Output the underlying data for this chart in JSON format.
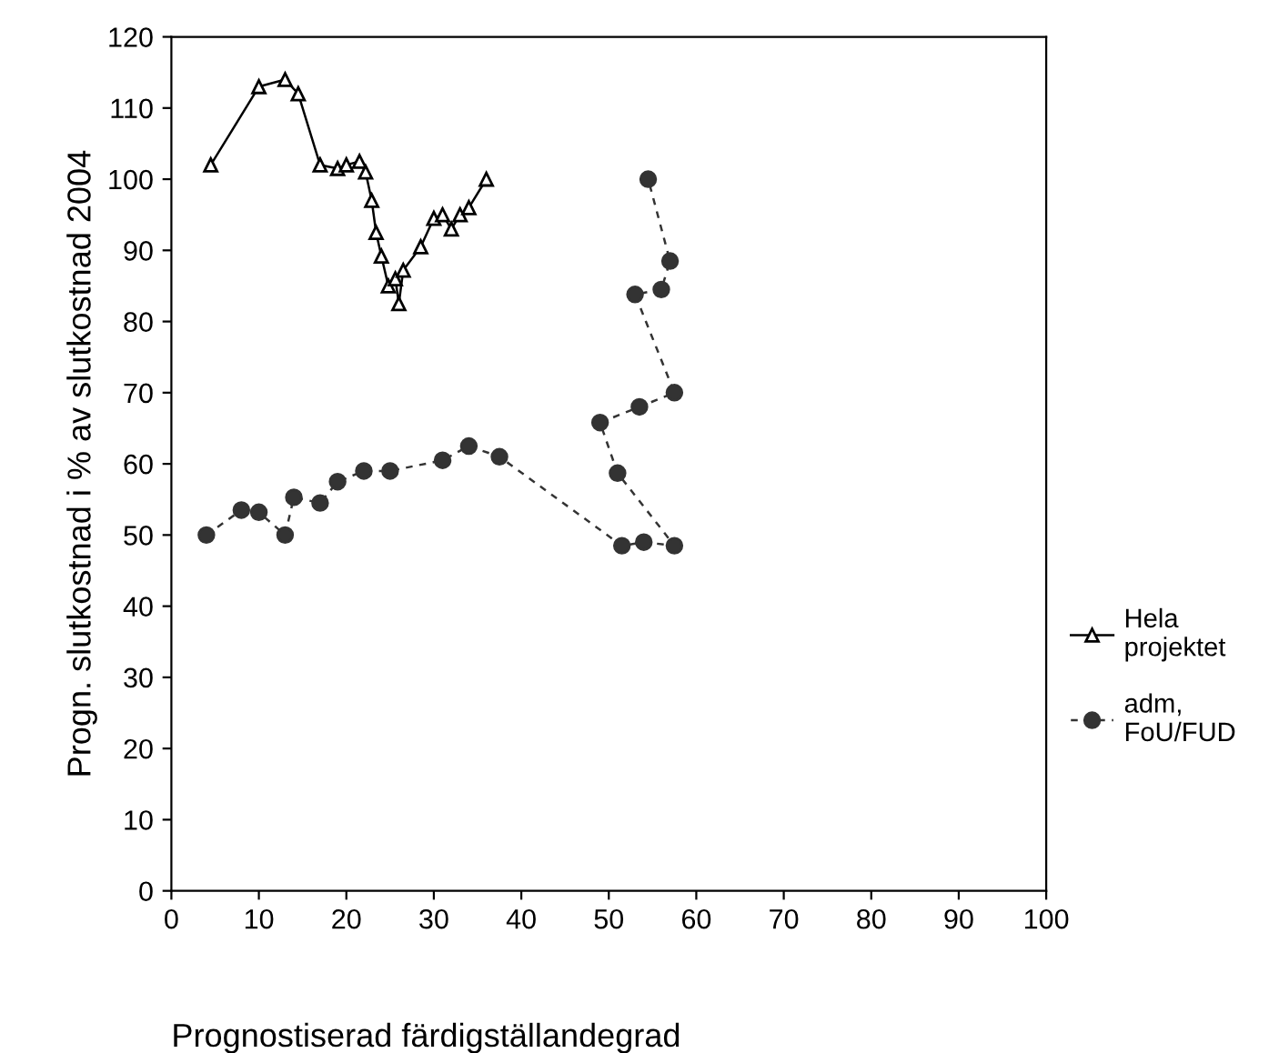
{
  "chart_data": {
    "type": "line",
    "xlabel": "Prognostiserad färdigställandegrad",
    "ylabel": "Progn. slutkostnad i % av slutkostnad 2004",
    "xlim": [
      0,
      100
    ],
    "xticks": [
      0,
      10,
      20,
      30,
      40,
      50,
      60,
      70,
      80,
      90,
      100
    ],
    "ylim": [
      0,
      120
    ],
    "yticks": [
      0,
      10,
      20,
      30,
      40,
      50,
      60,
      70,
      80,
      90,
      100,
      110,
      120
    ],
    "grid": false,
    "legend": "right",
    "series": [
      {
        "name": "Hela projektet",
        "color": "#000000",
        "marker": "triangle",
        "line_style": "solid",
        "x": [
          4.5,
          10,
          13,
          14.5,
          17,
          19,
          20,
          21.5,
          22.2,
          22.9,
          23.4,
          24.0,
          24.8,
          25.6,
          26.0,
          26.5,
          28.5,
          30,
          31,
          32,
          33,
          34,
          36
        ],
        "values": [
          102,
          113,
          114,
          112,
          102,
          101.5,
          102,
          102.5,
          101,
          97,
          92.5,
          89.2,
          85,
          86,
          82.5,
          87.2,
          90.5,
          94.5,
          95,
          93,
          95,
          96,
          100
        ]
      },
      {
        "name": "adm, FoU/FUD",
        "color": "#333333",
        "marker": "circle",
        "line_style": "dashed",
        "x": [
          4,
          8,
          10,
          13,
          14,
          17,
          19,
          22,
          25,
          31,
          34,
          37.5,
          51.5,
          54,
          57.5,
          51,
          49,
          53.5,
          57.5,
          53,
          56,
          57,
          54.5
        ],
        "values": [
          50,
          53.5,
          53.2,
          50,
          55.3,
          54.5,
          57.5,
          59,
          59,
          60.5,
          62.5,
          61,
          48.5,
          49,
          48.5,
          58.7,
          65.8,
          68,
          70,
          83.8,
          84.5,
          88.5,
          100
        ]
      }
    ]
  }
}
